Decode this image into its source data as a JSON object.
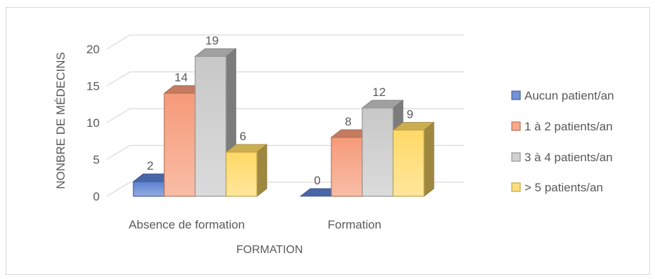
{
  "chart_data": {
    "type": "bar",
    "subtype": "3d-clustered-column",
    "title": "",
    "categories": [
      "Absence de formation",
      "Formation"
    ],
    "series": [
      {
        "name": "Aucun patient/an",
        "values": [
          2,
          0
        ],
        "color": "#5b7fd0"
      },
      {
        "name": "1 à 2 patients/an",
        "values": [
          14,
          8
        ],
        "color": "#f59a78"
      },
      {
        "name": "3 à 4 patients/an",
        "values": [
          19,
          12
        ],
        "color": "#c8c8c8"
      },
      {
        "name": "> 5 patients/an",
        "values": [
          6,
          9
        ],
        "color": "#ffd966"
      }
    ],
    "xlabel": "FORMATION",
    "ylabel": "NONBRE DE MÉDECINS",
    "ylim": [
      0,
      20
    ],
    "yticks": [
      0,
      5,
      10,
      15,
      20
    ],
    "grid": true,
    "legend": "right",
    "data_labels": true
  },
  "colors": {
    "gridline": "#d9d9d9",
    "text": "#595959",
    "border": "#d9d9d9"
  }
}
